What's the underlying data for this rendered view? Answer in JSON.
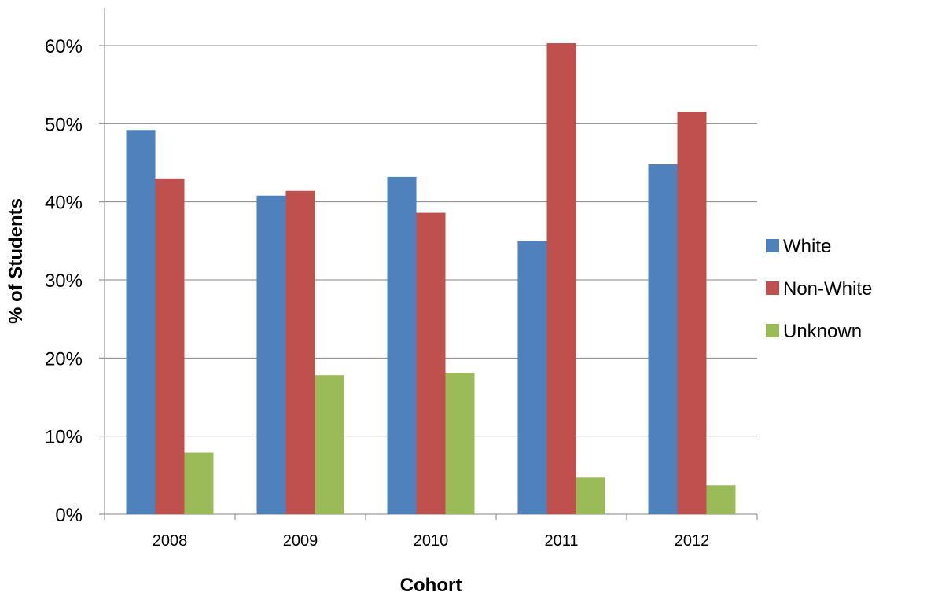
{
  "chart_data": {
    "type": "bar",
    "title": "",
    "xlabel": "Cohort",
    "ylabel": "% of Students",
    "categories": [
      "2008",
      "2009",
      "2010",
      "2011",
      "2012"
    ],
    "series": [
      {
        "name": "White",
        "color": "#4F81BD",
        "values": [
          49.2,
          40.8,
          43.2,
          35.0,
          44.8
        ]
      },
      {
        "name": "Non-White",
        "color": "#C0504D",
        "values": [
          42.9,
          41.4,
          38.6,
          60.3,
          51.5
        ]
      },
      {
        "name": "Unknown",
        "color": "#9BBB59",
        "values": [
          7.9,
          17.8,
          18.1,
          4.7,
          3.7
        ]
      }
    ],
    "ylim": [
      0,
      60
    ],
    "yticks": [
      0,
      10,
      20,
      30,
      40,
      50,
      60
    ],
    "ytick_labels": [
      "0%",
      "10%",
      "20%",
      "30%",
      "40%",
      "50%",
      "60%"
    ],
    "grid": true,
    "legend_position": "right"
  }
}
